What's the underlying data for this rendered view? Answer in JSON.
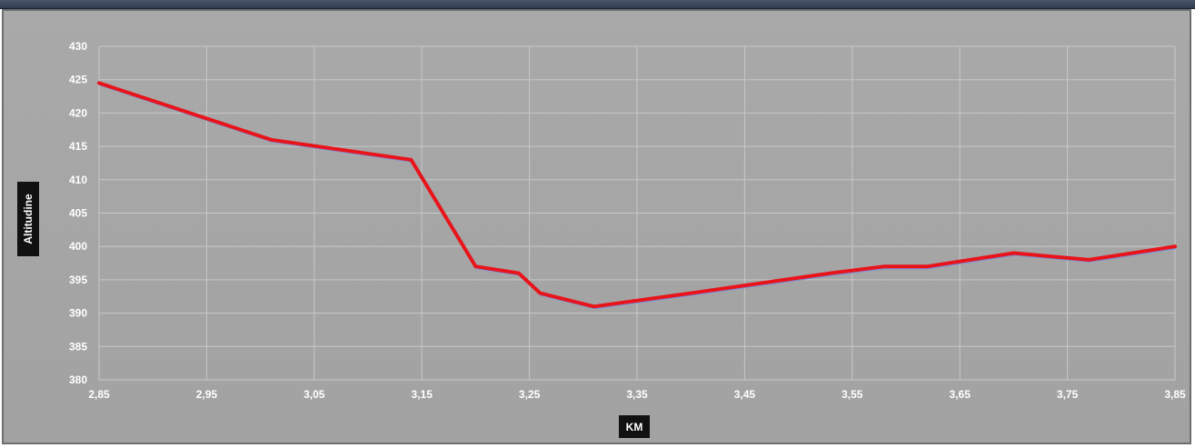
{
  "chart_data": {
    "type": "line",
    "title": "",
    "xlabel": "KM",
    "ylabel": "Altitudine",
    "xlim": [
      2.85,
      3.85
    ],
    "ylim": [
      380,
      430
    ],
    "x_ticks": [
      "2,85",
      "2,95",
      "3,05",
      "3,15",
      "3,25",
      "3,35",
      "3,45",
      "3,55",
      "3,65",
      "3,75",
      "3,85"
    ],
    "y_ticks": [
      "380",
      "385",
      "390",
      "395",
      "400",
      "405",
      "410",
      "415",
      "420",
      "425",
      "430"
    ],
    "grid": true,
    "legend": "none",
    "series": [
      {
        "color": "#e8141b",
        "x": [
          2.85,
          3.01,
          3.14,
          3.2,
          3.24,
          3.26,
          3.31,
          3.4,
          3.53,
          3.58,
          3.62,
          3.7,
          3.77,
          3.85
        ],
        "y": [
          424.5,
          416,
          413,
          397,
          396,
          393,
          391,
          393,
          396,
          397,
          397,
          399,
          398,
          400
        ]
      }
    ]
  }
}
